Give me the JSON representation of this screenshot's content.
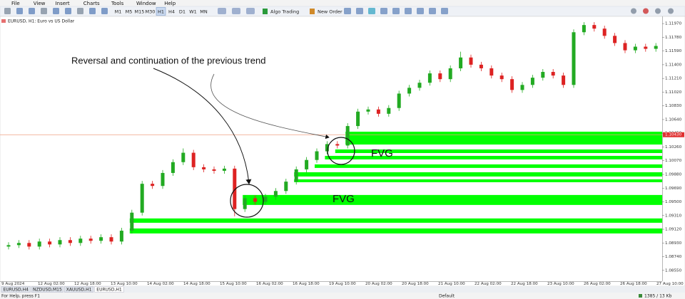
{
  "menu": [
    "File",
    "View",
    "Insert",
    "Charts",
    "Tools",
    "Window",
    "Help"
  ],
  "toolbar": {
    "timeframes": [
      "M1",
      "M5",
      "M15",
      "M30",
      "H1",
      "H4",
      "D1",
      "W1",
      "MN"
    ],
    "active_timeframe": "H1",
    "algo_trading": "Algo Trading",
    "new_order": "New Order"
  },
  "tabs": [
    "EURUSD,H4",
    "NZDUSD,M15",
    "XAUUSD,H1",
    "EURUSD,H1"
  ],
  "active_tab": "EURUSD,H1",
  "status": {
    "help": "For Help, press F1",
    "profile": "Default",
    "traffic": "1385 / 13 Kb"
  },
  "chart_data": {
    "type": "candlestick",
    "symbol_label": "EURUSD, H1:  Euro vs US Dollar",
    "annotation": "Reversal and continuation of the previous trend",
    "fvg_labels": [
      "FVG",
      "FVG"
    ],
    "up_color": "#22aa22",
    "down_color": "#dd2222",
    "zone_color": "#00ff00",
    "ylim": [
      1.0842,
      1.1205
    ],
    "yticks": [
      {
        "value": 1.1197,
        "label": "1.11970"
      },
      {
        "value": 1.1178,
        "label": "1.11780"
      },
      {
        "value": 1.1159,
        "label": "1.11590"
      },
      {
        "value": 1.114,
        "label": "1.11400"
      },
      {
        "value": 1.1121,
        "label": "1.11210"
      },
      {
        "value": 1.1102,
        "label": "1.11020"
      },
      {
        "value": 1.1083,
        "label": "1.10830"
      },
      {
        "value": 1.1064,
        "label": "1.10640"
      },
      {
        "value": 1.1045,
        "label": "1.10450"
      },
      {
        "value": 1.1026,
        "label": "1.10260"
      },
      {
        "value": 1.1007,
        "label": "1.10070"
      },
      {
        "value": 1.0988,
        "label": "1.09880"
      },
      {
        "value": 1.0969,
        "label": "1.09690"
      },
      {
        "value": 1.095,
        "label": "1.09500"
      },
      {
        "value": 1.0931,
        "label": "1.09310"
      },
      {
        "value": 1.0912,
        "label": "1.09120"
      },
      {
        "value": 1.0893,
        "label": "1.08930"
      },
      {
        "value": 1.0874,
        "label": "1.08740"
      },
      {
        "value": 1.0855,
        "label": "1.08550"
      }
    ],
    "price_line": {
      "value": 1.1043,
      "label": "1.10430",
      "color": "#f0a080"
    },
    "time_labels": [
      "9 Aug 2024",
      "12 Aug 02:00",
      "12 Aug 18:00",
      "13 Aug 10:00",
      "14 Aug 02:00",
      "14 Aug 18:00",
      "15 Aug 10:00",
      "16 Aug 02:00",
      "16 Aug 18:00",
      "19 Aug 10:00",
      "20 Aug 02:00",
      "20 Aug 18:00",
      "21 Aug 10:00",
      "22 Aug 02:00",
      "22 Aug 18:00",
      "23 Aug 10:00",
      "26 Aug 02:00",
      "26 Aug 18:00",
      "27 Aug 10:00"
    ],
    "candles": [
      [
        1.0888,
        1.0894,
        1.0884,
        1.089
      ],
      [
        1.089,
        1.0897,
        1.0886,
        1.0893
      ],
      [
        1.0893,
        1.0897,
        1.0884,
        1.0888
      ],
      [
        1.0888,
        1.0899,
        1.0884,
        1.0895
      ],
      [
        1.0895,
        1.0899,
        1.0887,
        1.0891
      ],
      [
        1.0891,
        1.0901,
        1.0887,
        1.0897
      ],
      [
        1.0897,
        1.0901,
        1.0889,
        1.0893
      ],
      [
        1.0893,
        1.0903,
        1.0889,
        1.0899
      ],
      [
        1.0899,
        1.0903,
        1.0892,
        1.0896
      ],
      [
        1.0896,
        1.0905,
        1.0892,
        1.0901
      ],
      [
        1.0901,
        1.0905,
        1.0891,
        1.0895
      ],
      [
        1.0895,
        1.0914,
        1.0891,
        1.091
      ],
      [
        1.091,
        1.0939,
        1.0906,
        1.0935
      ],
      [
        1.0935,
        1.0979,
        1.0931,
        1.0975
      ],
      [
        1.0975,
        1.0979,
        1.0968,
        1.0972
      ],
      [
        1.0972,
        1.0994,
        1.0968,
        1.099
      ],
      [
        1.099,
        1.1009,
        1.0986,
        1.1005
      ],
      [
        1.1005,
        1.1024,
        1.1001,
        1.1018
      ],
      [
        1.1018,
        1.1022,
        1.0994,
        1.0998
      ],
      [
        1.0998,
        1.1002,
        1.0991,
        1.0995
      ],
      [
        1.0995,
        1.0999,
        1.0989,
        1.0993
      ],
      [
        1.0993,
        1.1,
        1.0989,
        1.0996
      ],
      [
        1.0996,
        1.1,
        1.093,
        1.094
      ],
      [
        1.094,
        1.0959,
        1.0936,
        1.0955
      ],
      [
        1.0955,
        1.0959,
        1.0946,
        1.095
      ],
      [
        1.095,
        1.0961,
        1.0946,
        1.0957
      ],
      [
        1.0957,
        1.0969,
        1.0953,
        1.0965
      ],
      [
        1.0965,
        1.0982,
        1.0961,
        1.0978
      ],
      [
        1.0978,
        1.0999,
        1.0974,
        1.0995
      ],
      [
        1.0995,
        1.1012,
        1.0991,
        1.1008
      ],
      [
        1.1008,
        1.1024,
        1.1004,
        1.102
      ],
      [
        1.102,
        1.1034,
        1.1016,
        1.103
      ],
      [
        1.103,
        1.1034,
        1.1024,
        1.1028
      ],
      [
        1.1028,
        1.1059,
        1.1024,
        1.1055
      ],
      [
        1.1055,
        1.1079,
        1.1051,
        1.1075
      ],
      [
        1.1075,
        1.1082,
        1.1071,
        1.1078
      ],
      [
        1.1078,
        1.1082,
        1.1068,
        1.1072
      ],
      [
        1.1072,
        1.1084,
        1.1068,
        1.108
      ],
      [
        1.108,
        1.1104,
        1.1076,
        1.11
      ],
      [
        1.11,
        1.1112,
        1.1096,
        1.1108
      ],
      [
        1.1108,
        1.1119,
        1.1104,
        1.1115
      ],
      [
        1.1115,
        1.1132,
        1.1111,
        1.1128
      ],
      [
        1.1128,
        1.1132,
        1.1116,
        1.112
      ],
      [
        1.112,
        1.1139,
        1.1116,
        1.1135
      ],
      [
        1.1135,
        1.1158,
        1.1131,
        1.115
      ],
      [
        1.115,
        1.1154,
        1.1136,
        1.114
      ],
      [
        1.114,
        1.1144,
        1.1131,
        1.1135
      ],
      [
        1.1135,
        1.1139,
        1.1121,
        1.1125
      ],
      [
        1.1125,
        1.1129,
        1.1116,
        1.112
      ],
      [
        1.112,
        1.1124,
        1.1101,
        1.1105
      ],
      [
        1.1105,
        1.1116,
        1.1101,
        1.1112
      ],
      [
        1.1112,
        1.1126,
        1.1108,
        1.1122
      ],
      [
        1.1122,
        1.1134,
        1.1118,
        1.113
      ],
      [
        1.113,
        1.1134,
        1.1121,
        1.1125
      ],
      [
        1.1125,
        1.1129,
        1.1108,
        1.1112
      ],
      [
        1.1112,
        1.1189,
        1.1108,
        1.1185
      ],
      [
        1.1185,
        1.1199,
        1.1181,
        1.1195
      ],
      [
        1.1195,
        1.1199,
        1.1186,
        1.119
      ],
      [
        1.119,
        1.1194,
        1.1176,
        1.118
      ],
      [
        1.118,
        1.1184,
        1.1166,
        1.117
      ],
      [
        1.117,
        1.1174,
        1.1156,
        1.116
      ],
      [
        1.116,
        1.1169,
        1.1156,
        1.1165
      ],
      [
        1.1165,
        1.1169,
        1.1158,
        1.1162
      ],
      [
        1.1162,
        1.117,
        1.1158,
        1.1166
      ]
    ],
    "zones": [
      {
        "start": 33,
        "top": 1.10472,
        "bottom": 1.10294
      },
      {
        "start": 32,
        "top": 1.10226,
        "bottom": 1.10176
      },
      {
        "start": 31,
        "top": 1.10137,
        "bottom": 1.10088
      },
      {
        "start": 30,
        "top": 1.10019,
        "bottom": 1.0997
      },
      {
        "start": 28,
        "top": 1.0991,
        "bottom": 1.09851
      },
      {
        "start": 28,
        "top": 1.09812,
        "bottom": 1.09772
      },
      {
        "start": 23,
        "top": 1.09595,
        "bottom": 1.09457
      },
      {
        "start": 12,
        "top": 1.0927,
        "bottom": 1.0921
      },
      {
        "start": 12,
        "top": 1.09131,
        "bottom": 1.09062
      }
    ]
  }
}
